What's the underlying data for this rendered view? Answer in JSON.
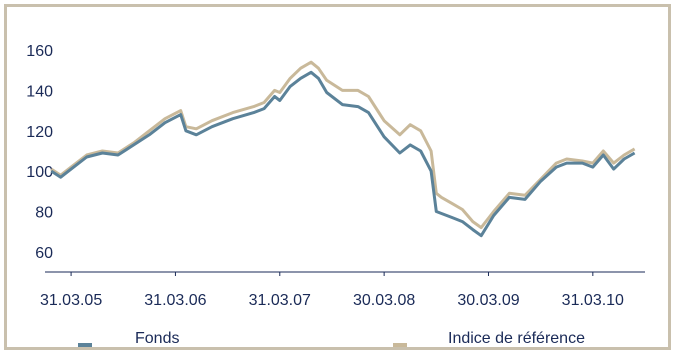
{
  "chart_data": {
    "type": "line",
    "title": "",
    "xlabel": "",
    "ylabel": "",
    "ylim": [
      50,
      165
    ],
    "yticks": [
      60,
      80,
      100,
      120,
      140,
      160
    ],
    "xticks": [
      "31.03.05",
      "31.03.06",
      "31.03.07",
      "30.03.08",
      "30.03.09",
      "31.03.10"
    ],
    "xtick_positions": [
      2005.25,
      2006.25,
      2007.25,
      2008.25,
      2009.25,
      2010.25
    ],
    "grid": false,
    "legend": "bottom",
    "colors": {
      "fonds": "#5b8299",
      "indice": "#c9b99a",
      "axis": "#1a2a57"
    },
    "series": [
      {
        "name": "Fonds",
        "x": [
          2005.06,
          2005.15,
          2005.25,
          2005.4,
          2005.55,
          2005.7,
          2005.85,
          2006.0,
          2006.15,
          2006.3,
          2006.35,
          2006.45,
          2006.6,
          2006.8,
          2007.0,
          2007.1,
          2007.2,
          2007.25,
          2007.35,
          2007.45,
          2007.55,
          2007.62,
          2007.7,
          2007.85,
          2008.0,
          2008.1,
          2008.25,
          2008.4,
          2008.5,
          2008.6,
          2008.7,
          2008.75,
          2008.8,
          2008.9,
          2009.0,
          2009.1,
          2009.18,
          2009.3,
          2009.45,
          2009.6,
          2009.75,
          2009.9,
          2010.0,
          2010.15,
          2010.25,
          2010.35,
          2010.45,
          2010.55,
          2010.65
        ],
        "values": [
          100,
          97,
          101,
          107,
          109,
          108,
          113,
          118,
          124,
          128,
          120,
          118,
          122,
          126,
          129,
          131,
          137,
          135,
          142,
          146,
          149,
          146,
          139,
          133,
          132,
          129,
          117,
          109,
          113,
          110,
          100,
          80,
          79,
          77,
          75,
          71,
          68,
          78,
          87,
          86,
          95,
          102,
          104,
          104,
          102,
          108,
          101,
          106,
          109
        ]
      },
      {
        "name": "Indice de référence",
        "x": [
          2005.06,
          2005.15,
          2005.25,
          2005.4,
          2005.55,
          2005.7,
          2005.85,
          2006.0,
          2006.15,
          2006.3,
          2006.35,
          2006.45,
          2006.6,
          2006.8,
          2007.0,
          2007.1,
          2007.2,
          2007.25,
          2007.35,
          2007.45,
          2007.55,
          2007.62,
          2007.7,
          2007.85,
          2008.0,
          2008.1,
          2008.25,
          2008.4,
          2008.5,
          2008.6,
          2008.7,
          2008.75,
          2008.8,
          2008.9,
          2009.0,
          2009.1,
          2009.18,
          2009.3,
          2009.45,
          2009.6,
          2009.75,
          2009.9,
          2010.0,
          2010.15,
          2010.25,
          2010.35,
          2010.45,
          2010.55,
          2010.65
        ],
        "values": [
          101,
          98,
          102,
          108,
          110,
          109,
          114,
          120,
          126,
          130,
          122,
          121,
          125,
          129,
          132,
          134,
          140,
          139,
          146,
          151,
          154,
          151,
          145,
          140,
          140,
          137,
          125,
          118,
          123,
          120,
          110,
          89,
          87,
          84,
          81,
          75,
          72,
          80,
          89,
          88,
          96,
          104,
          106,
          105,
          104,
          110,
          104,
          108,
          111
        ]
      }
    ]
  }
}
